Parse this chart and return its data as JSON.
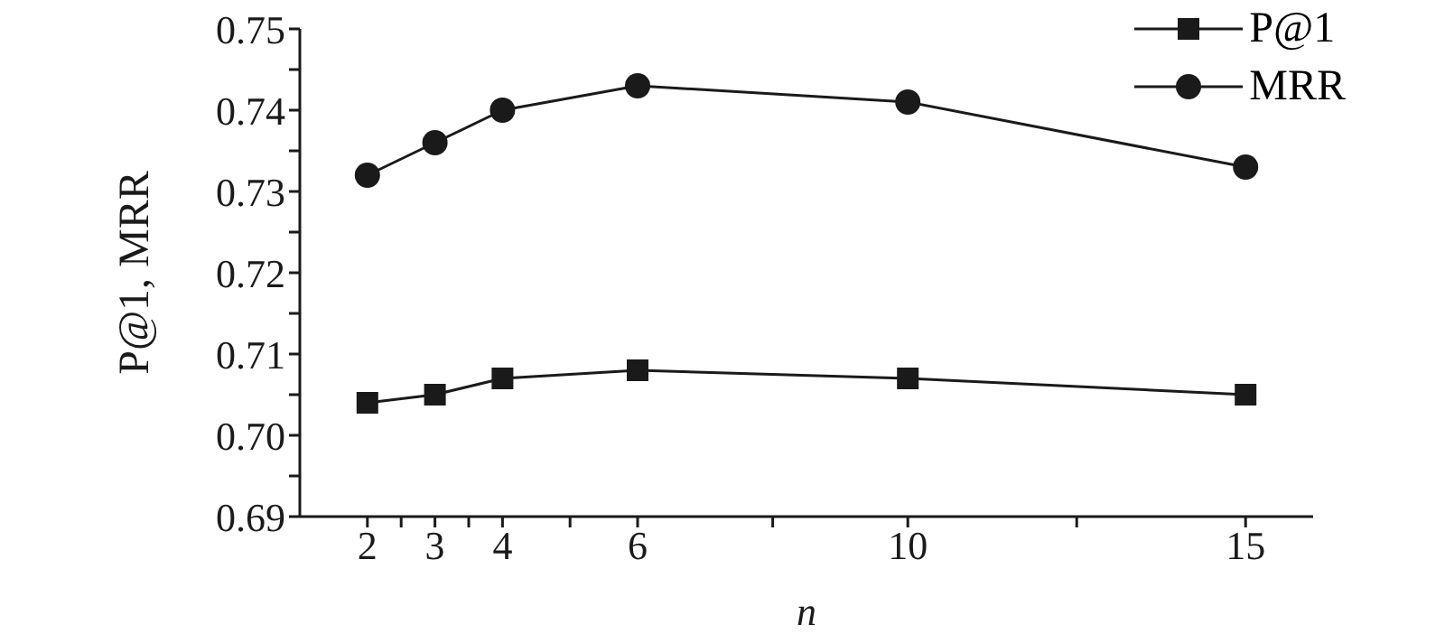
{
  "chart_data": {
    "type": "line",
    "xlabel": "n",
    "ylabel": "P@1, MRR",
    "x": [
      2,
      3,
      4,
      6,
      10,
      15
    ],
    "series": [
      {
        "name": "P@1",
        "color": "#1a1a1a",
        "marker": "square",
        "values": [
          0.704,
          0.705,
          0.707,
          0.708,
          0.707,
          0.705
        ]
      },
      {
        "name": "MRR",
        "color": "#1a1a1a",
        "marker": "circle",
        "values": [
          0.732,
          0.736,
          0.74,
          0.743,
          0.741,
          0.733
        ]
      }
    ],
    "xlim": [
      1,
      16
    ],
    "xticks": [
      2,
      {
        "value": 2.5,
        "label": null
      },
      3,
      {
        "value": 3.5,
        "label": null
      },
      4,
      {
        "value": 5,
        "label": null
      },
      6,
      {
        "value": 8,
        "label": null
      },
      10,
      {
        "value": 12.5,
        "label": null
      },
      15
    ],
    "ylim": [
      0.69,
      0.75
    ],
    "yticks": [
      0.69,
      {
        "value": 0.695,
        "label": null
      },
      {
        "value": 0.7,
        "label": "0.70"
      },
      {
        "value": 0.705,
        "label": null
      },
      0.71,
      {
        "value": 0.715,
        "label": null
      },
      0.72,
      {
        "value": 0.725,
        "label": null
      },
      0.73,
      {
        "value": 0.735,
        "label": null
      },
      0.74,
      {
        "value": 0.745,
        "label": null
      },
      0.75
    ],
    "legend": "top right",
    "grid": false,
    "line_style": "solid"
  }
}
